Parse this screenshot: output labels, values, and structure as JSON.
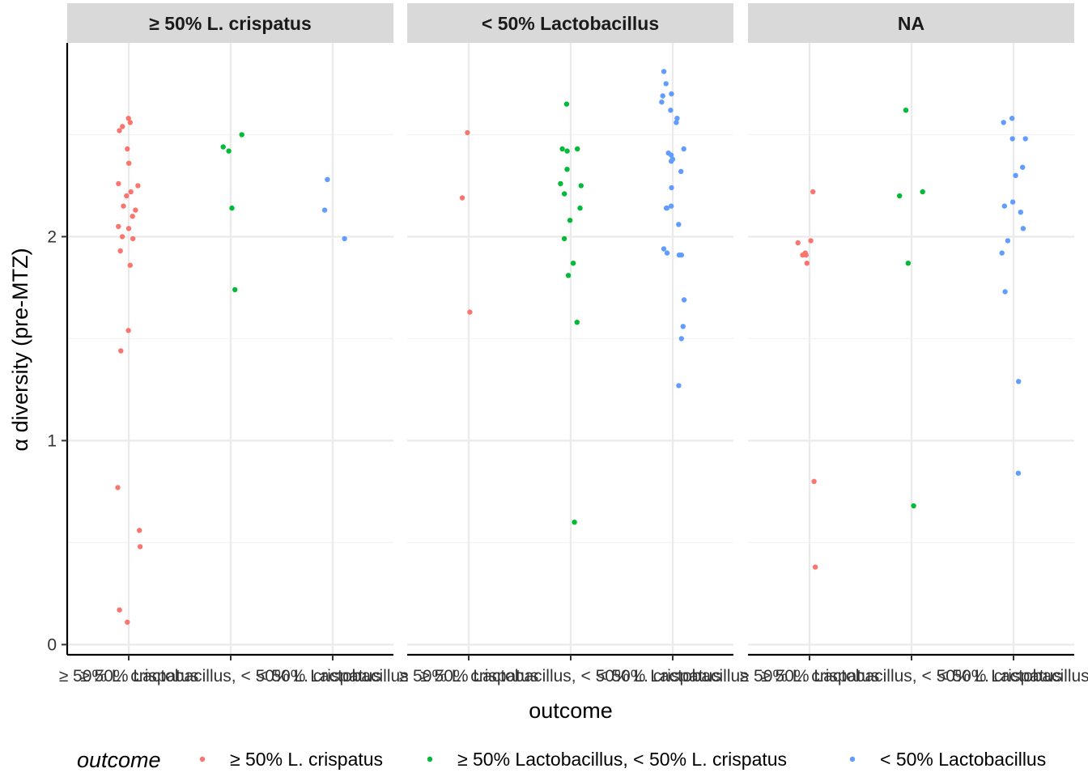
{
  "chart_data": {
    "type": "scatter",
    "jitter": true,
    "facets": [
      {
        "label": "≥ 50% L. crispatus",
        "points": [
          {
            "x": "≥ 50% L. crispatus",
            "y": [
              2.58,
              2.56,
              2.52,
              2.54,
              2.43,
              2.36,
              2.26,
              2.25,
              2.22,
              2.2,
              2.15,
              2.13,
              2.1,
              2.05,
              2.04,
              2.0,
              1.99,
              1.93,
              1.86,
              1.54,
              1.44,
              0.77,
              0.56,
              0.48,
              0.17,
              0.11
            ]
          },
          {
            "x": "≥ 50% Lactobacillus, < 50% L. crispatus",
            "y": [
              2.5,
              2.44,
              2.42,
              2.14,
              1.74
            ]
          },
          {
            "x": "< 50% Lactobacillus",
            "y": [
              2.28,
              2.13,
              1.99
            ]
          }
        ]
      },
      {
        "label": "< 50% Lactobacillus",
        "points": [
          {
            "x": "≥ 50% L. crispatus",
            "y": [
              2.51,
              2.19,
              1.63
            ]
          },
          {
            "x": "≥ 50% Lactobacillus, < 50% L. crispatus",
            "y": [
              2.65,
              2.43,
              2.43,
              2.42,
              2.33,
              2.26,
              2.25,
              2.21,
              2.14,
              2.08,
              1.99,
              1.87,
              1.81,
              1.58,
              0.6
            ]
          },
          {
            "x": "< 50% Lactobacillus",
            "y": [
              2.81,
              2.75,
              2.7,
              2.69,
              2.66,
              2.62,
              2.58,
              2.56,
              2.43,
              2.41,
              2.4,
              2.38,
              2.37,
              2.32,
              2.24,
              2.15,
              2.14,
              2.14,
              2.06,
              1.94,
              1.92,
              1.91,
              1.91,
              1.69,
              1.56,
              1.5,
              1.27
            ]
          }
        ]
      },
      {
        "label": "NA",
        "points": [
          {
            "x": "≥ 50% L. crispatus",
            "y": [
              2.22,
              1.98,
              1.97,
              1.92,
              1.91,
              1.91,
              1.87,
              0.8,
              0.38
            ]
          },
          {
            "x": "≥ 50% Lactobacillus, < 50% L. crispatus",
            "y": [
              2.62,
              2.22,
              2.2,
              1.87,
              0.68
            ]
          },
          {
            "x": "< 50% Lactobacillus",
            "y": [
              2.58,
              2.56,
              2.48,
              2.48,
              2.34,
              2.3,
              2.17,
              2.15,
              2.12,
              2.04,
              1.98,
              1.92,
              1.73,
              1.29,
              0.84
            ]
          }
        ]
      }
    ],
    "categories": [
      "≥ 50% L. crispatus",
      "≥ 50% Lactobacillus, < 50% L. crispatus",
      "< 50% Lactobacillus"
    ],
    "xlabel": "outcome",
    "ylabel": "α diversity (pre-MTZ)",
    "ylim": [
      -0.05,
      2.95
    ],
    "yticks": [
      0,
      1,
      2
    ],
    "grid": true,
    "legend": {
      "title": "outcome",
      "placement": "bottom",
      "entries": [
        {
          "label": "≥ 50% L. crispatus",
          "color": "#F8766D"
        },
        {
          "label": "≥ 50% Lactobacillus, < 50% L. crispatus",
          "color": "#00BA38"
        },
        {
          "label": "< 50% Lactobacillus",
          "color": "#619CFF"
        }
      ]
    }
  }
}
